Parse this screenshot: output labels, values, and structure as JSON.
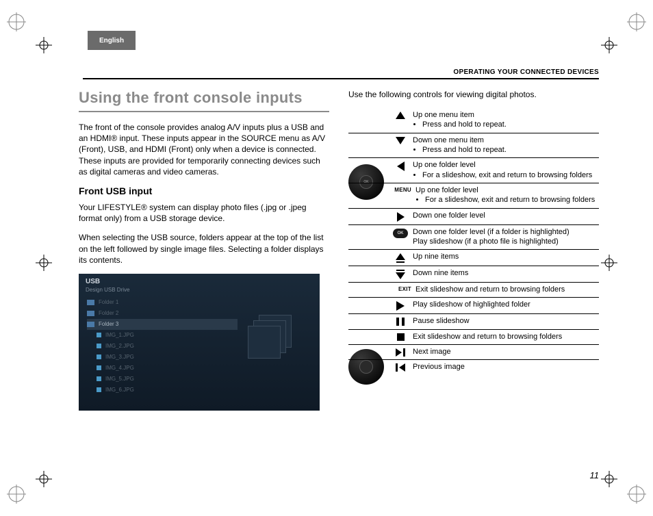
{
  "lang_tab": "English",
  "section_header": "OPERATING YOUR CONNECTED DEVICES",
  "title": "Using the front console inputs",
  "intro": "The front of the console provides analog A/V inputs plus a USB and an HDMI® input. These inputs appear in the SOURCE menu as A/V (Front), USB, and HDMI (Front) only when a device is connected. These inputs are provided for temporarily connecting devices such as digital cameras and video cameras.",
  "subhead": "Front USB input",
  "usb_p1": "Your LIFESTYLE® system can display photo files (.jpg or .jpeg format only) from a USB storage device.",
  "usb_p2": "When selecting the USB source, folders appear at the top of the list on the left followed by single image files. Selecting a folder displays its contents.",
  "usb_screenshot": {
    "title": "USB",
    "subtitle": "Design USB Drive",
    "rows": [
      {
        "type": "folder",
        "label": "Folder 1"
      },
      {
        "type": "folder",
        "label": "Folder 2"
      },
      {
        "type": "folder",
        "label": "Folder 3",
        "selected": true
      },
      {
        "type": "file",
        "label": "IMG_1.JPG"
      },
      {
        "type": "file",
        "label": "IMG_2.JPG"
      },
      {
        "type": "file",
        "label": "IMG_3.JPG"
      },
      {
        "type": "file",
        "label": "IMG_4.JPG"
      },
      {
        "type": "file",
        "label": "IMG_5.JPG"
      },
      {
        "type": "file",
        "label": "IMG_6.JPG"
      }
    ]
  },
  "controls_intro": "Use the following controls for viewing digital photos.",
  "controls": [
    {
      "icon": "up",
      "lines": [
        "Up one menu item"
      ],
      "bullets": [
        "Press and hold to repeat."
      ]
    },
    {
      "icon": "down",
      "lines": [
        "Down one menu item"
      ],
      "bullets": [
        "Press and hold to repeat."
      ]
    },
    {
      "icon": "left",
      "lines": [
        "Up one folder level"
      ],
      "bullets": [
        "For a slideshow, exit and return to browsing folders"
      ]
    },
    {
      "icon": "label",
      "label": "MENU",
      "lines": [
        "Up one folder level"
      ],
      "bullets": [
        "For a slideshow, exit and return to browsing folders"
      ]
    },
    {
      "icon": "right",
      "lines": [
        "Down one folder level"
      ]
    },
    {
      "icon": "ok",
      "lines": [
        "Down one folder level (if a folder is highlighted)",
        "Play slideshow (if a photo file is highlighted)"
      ]
    },
    {
      "icon": "pageup",
      "lines": [
        "Up nine items"
      ]
    },
    {
      "icon": "pagedown",
      "lines": [
        "Down nine items"
      ]
    },
    {
      "icon": "label",
      "label": "EXIT",
      "lines": [
        "Exit slideshow and return to browsing folders"
      ]
    },
    {
      "icon": "play",
      "lines": [
        "Play slideshow of highlighted folder"
      ]
    },
    {
      "icon": "pause",
      "lines": [
        "Pause slideshow"
      ]
    },
    {
      "icon": "stop",
      "lines": [
        "Exit slideshow and return to browsing folders"
      ]
    },
    {
      "icon": "next",
      "lines": [
        "Next image"
      ]
    },
    {
      "icon": "prev",
      "lines": [
        "Previous image"
      ]
    }
  ],
  "ok_label": "OK",
  "page_number": "11"
}
